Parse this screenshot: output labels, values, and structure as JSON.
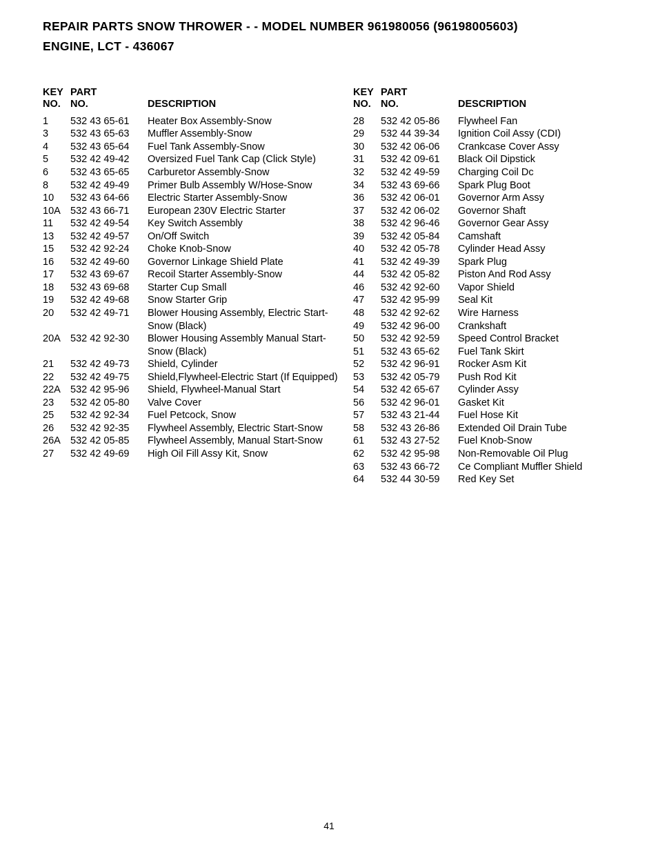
{
  "title_line1": "REPAIR PARTS  SNOW THROWER - - MODEL NUMBER  961980056 (96198005603)",
  "title_line2": "ENGINE, LCT - 436067",
  "headers": {
    "key_line1": "KEY",
    "key_line2": "NO.",
    "part_line1": "PART",
    "part_line2": "NO.",
    "description": "DESCRIPTION"
  },
  "left_rows": [
    {
      "key": "1",
      "part": "532 43 65-61",
      "desc": "Heater Box Assembly-Snow"
    },
    {
      "key": "3",
      "part": "532 43 65-63",
      "desc": "Muffler Assembly-Snow"
    },
    {
      "key": "4",
      "part": "532 43 65-64",
      "desc": "Fuel Tank Assembly-Snow"
    },
    {
      "key": "5",
      "part": "532 42 49-42",
      "desc": "Oversized Fuel Tank Cap (Click Style)"
    },
    {
      "key": "6",
      "part": "532 43 65-65",
      "desc": "Carburetor Assembly-Snow"
    },
    {
      "key": "8",
      "part": "532 42 49-49",
      "desc": "Primer Bulb Assembly W/Hose-Snow"
    },
    {
      "key": "10",
      "part": "532 43 64-66",
      "desc": "Electric Starter Assembly-Snow"
    },
    {
      "key": "10A",
      "part": "532 43 66-71",
      "desc": "European 230V Electric Starter"
    },
    {
      "key": "11",
      "part": "532 42 49-54",
      "desc": "Key Switch Assembly"
    },
    {
      "key": "13",
      "part": "532 42 49-57",
      "desc": "On/Off Switch"
    },
    {
      "key": "15",
      "part": "532 42 92-24",
      "desc": "Choke Knob-Snow"
    },
    {
      "key": "16",
      "part": "532 42 49-60",
      "desc": "Governor Linkage Shield Plate"
    },
    {
      "key": "17",
      "part": "532 43 69-67",
      "desc": "Recoil Starter Assembly-Snow"
    },
    {
      "key": "18",
      "part": "532 43 69-68",
      "desc": "Starter Cup Small"
    },
    {
      "key": "19",
      "part": "532 42 49-68",
      "desc": "Snow Starter Grip"
    },
    {
      "key": "20",
      "part": "532 42 49-71",
      "desc": "Blower Housing Assembly, Electric Start-Snow (Black)"
    },
    {
      "key": "20A",
      "part": "532 42 92-30",
      "desc": "Blower Housing Assembly Manual Start-Snow (Black)"
    },
    {
      "key": "21",
      "part": "532 42 49-73",
      "desc": "Shield, Cylinder"
    },
    {
      "key": "22",
      "part": "532 42 49-75",
      "desc": "Shield,Flywheel-Electric Start (If Equipped)"
    },
    {
      "key": "22A",
      "part": "532 42 95-96",
      "desc": "Shield, Flywheel-Manual Start"
    },
    {
      "key": "23",
      "part": "532 42 05-80",
      "desc": "Valve Cover"
    },
    {
      "key": "25",
      "part": "532 42 92-34",
      "desc": "Fuel Petcock, Snow"
    },
    {
      "key": "26",
      "part": "532 42 92-35",
      "desc": "Flywheel Assembly, Electric Start-Snow"
    },
    {
      "key": "26A",
      "part": "532 42 05-85",
      "desc": "Flywheel Assembly, Manual Start-Snow"
    },
    {
      "key": "27",
      "part": "532 42 49-69",
      "desc": "High Oil Fill Assy Kit, Snow"
    }
  ],
  "right_rows": [
    {
      "key": "28",
      "part": "532 42 05-86",
      "desc": "Flywheel Fan"
    },
    {
      "key": "29",
      "part": "532 44 39-34",
      "desc": "Ignition Coil Assy (CDI)"
    },
    {
      "key": "30",
      "part": "532 42 06-06",
      "desc": "Crankcase Cover Assy"
    },
    {
      "key": "31",
      "part": "532 42 09-61",
      "desc": "Black Oil Dipstick"
    },
    {
      "key": "32",
      "part": "532 42 49-59",
      "desc": "Charging Coil Dc"
    },
    {
      "key": "34",
      "part": "532 43 69-66",
      "desc": "Spark Plug Boot"
    },
    {
      "key": "36",
      "part": "532 42 06-01",
      "desc": "Governor Arm Assy"
    },
    {
      "key": "37",
      "part": "532 42 06-02",
      "desc": "Governor Shaft"
    },
    {
      "key": "38",
      "part": "532 42 96-46",
      "desc": "Governor Gear Assy"
    },
    {
      "key": "39",
      "part": "532 42 05-84",
      "desc": "Camshaft"
    },
    {
      "key": "40",
      "part": "532 42 05-78",
      "desc": "Cylinder Head Assy"
    },
    {
      "key": "41",
      "part": "532 42 49-39",
      "desc": "Spark Plug"
    },
    {
      "key": "44",
      "part": "532 42 05-82",
      "desc": "Piston And Rod Assy"
    },
    {
      "key": "46",
      "part": "532 42 92-60",
      "desc": "Vapor Shield"
    },
    {
      "key": "47",
      "part": "532 42 95-99",
      "desc": "Seal Kit"
    },
    {
      "key": "48",
      "part": "532 42 92-62",
      "desc": "Wire Harness"
    },
    {
      "key": "49",
      "part": "532 42 96-00",
      "desc": "Crankshaft"
    },
    {
      "key": "50",
      "part": "532 42 92-59",
      "desc": "Speed Control Bracket"
    },
    {
      "key": "51",
      "part": "532 43 65-62",
      "desc": "Fuel Tank Skirt"
    },
    {
      "key": "52",
      "part": "532 42 96-91",
      "desc": "Rocker Asm Kit"
    },
    {
      "key": "53",
      "part": "532 42 05-79",
      "desc": "Push Rod Kit"
    },
    {
      "key": "54",
      "part": "532 42 65-67",
      "desc": "Cylinder Assy"
    },
    {
      "key": "56",
      "part": "532 42 96-01",
      "desc": "Gasket Kit"
    },
    {
      "key": "57",
      "part": "532 43 21-44",
      "desc": "Fuel Hose Kit"
    },
    {
      "key": "58",
      "part": "532 43 26-86",
      "desc": "Extended Oil Drain Tube"
    },
    {
      "key": "61",
      "part": "532 43 27-52",
      "desc": "Fuel Knob-Snow"
    },
    {
      "key": "62",
      "part": "532 42 95-98",
      "desc": "Non-Removable Oil Plug"
    },
    {
      "key": "63",
      "part": "532 43 66-72",
      "desc": "Ce Compliant Muffler Shield"
    },
    {
      "key": "64",
      "part": "532 44 30-59",
      "desc": "Red Key Set"
    }
  ],
  "page_number": "41"
}
